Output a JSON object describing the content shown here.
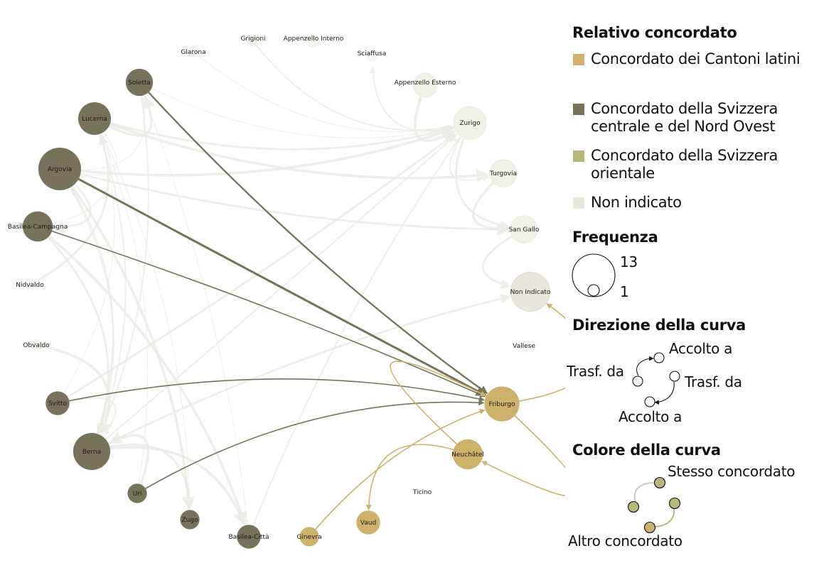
{
  "legend": {
    "concordat_title": "Relativo concordato",
    "concordats": [
      {
        "label": "Concordato dei Cantoni latini",
        "color": "#cdb26b"
      },
      {
        "label": "Concordato della Svizzera centrale e del Nord Ovest",
        "color": "#77735a"
      },
      {
        "label": "Concordato della Svizzera orientale",
        "color": "#b5b878"
      },
      {
        "label": "Non indicato",
        "color": "#e9e6de"
      }
    ],
    "frequency_title": "Frequenza",
    "frequency_max": "13",
    "frequency_min": "1",
    "direction_title": "Direzione della curva",
    "direction_labels": {
      "received_a": "Accolto a",
      "transferred_a": "Trasf. da",
      "transferred_b": "Trasf. da",
      "received_b": "Accolto a"
    },
    "color_title": "Colore della curva",
    "color_labels": {
      "same": "Stesso concordato",
      "other": "Altro concordato"
    }
  },
  "nodes": [
    {
      "id": "grigioni",
      "label": "Grigioni",
      "freq": 1,
      "concordat": "orientale"
    },
    {
      "id": "appenzello-interno",
      "label": "Appenzello Interno",
      "freq": 1,
      "concordat": "orientale"
    },
    {
      "id": "sciaffusa",
      "label": "Sciaffusa",
      "freq": 1,
      "concordat": "orientale"
    },
    {
      "id": "appenzello-esterno",
      "label": "Appenzello Esterno",
      "freq": 2,
      "concordat": "orientale"
    },
    {
      "id": "zurigo",
      "label": "Zurigo",
      "freq": 5,
      "concordat": "orientale"
    },
    {
      "id": "turgovia",
      "label": "Turgovia",
      "freq": 3,
      "concordat": "orientale"
    },
    {
      "id": "san-gallo",
      "label": "San Gallo",
      "freq": 3,
      "concordat": "orientale"
    },
    {
      "id": "non-indicato",
      "label": "Non Indicato",
      "freq": 8,
      "concordat": "none"
    },
    {
      "id": "vallese",
      "label": "Vallese",
      "freq": 1,
      "concordat": "latini"
    },
    {
      "id": "friburgo",
      "label": "Friburgo",
      "freq": 6,
      "concordat": "latini"
    },
    {
      "id": "neuchatel",
      "label": "Neuchâtel",
      "freq": 4,
      "concordat": "latini"
    },
    {
      "id": "ticino",
      "label": "Ticino",
      "freq": 1,
      "concordat": "latini"
    },
    {
      "id": "vaud",
      "label": "Vaud",
      "freq": 2,
      "concordat": "latini"
    },
    {
      "id": "ginevra",
      "label": "Ginevra",
      "freq": 1,
      "concordat": "latini"
    },
    {
      "id": "basilea-citta",
      "label": "Basilea-Città",
      "freq": 2,
      "concordat": "centrale"
    },
    {
      "id": "zugo",
      "label": "Zugo",
      "freq": 1,
      "concordat": "centrale"
    },
    {
      "id": "uri",
      "label": "Uri",
      "freq": 1,
      "concordat": "centrale"
    },
    {
      "id": "berna",
      "label": "Berna",
      "freq": 7,
      "concordat": "centrale"
    },
    {
      "id": "svitto",
      "label": "Svitto",
      "freq": 2,
      "concordat": "centrale"
    },
    {
      "id": "obvaldo",
      "label": "Obvaldo",
      "freq": 1,
      "concordat": "centrale"
    },
    {
      "id": "nidvaldo",
      "label": "Nidvaldo",
      "freq": 1,
      "concordat": "centrale"
    },
    {
      "id": "basilea-campagna",
      "label": "Basilea-Campagna",
      "freq": 4,
      "concordat": "centrale"
    },
    {
      "id": "argovia",
      "label": "Argovia",
      "freq": 10,
      "concordat": "centrale"
    },
    {
      "id": "lucerna",
      "label": "Lucerna",
      "freq": 5,
      "concordat": "centrale"
    },
    {
      "id": "soletta",
      "label": "Soletta",
      "freq": 3,
      "concordat": "centrale"
    },
    {
      "id": "glarona",
      "label": "Glarona",
      "freq": 1,
      "concordat": "orientale"
    }
  ],
  "highlighted_edges": [
    {
      "from": "soletta",
      "to": "friburgo",
      "weight": 2
    },
    {
      "from": "argovia",
      "to": "friburgo",
      "weight": 3
    },
    {
      "from": "basilea-campagna",
      "to": "friburgo",
      "weight": 1
    },
    {
      "from": "svitto",
      "to": "friburgo",
      "weight": 1
    },
    {
      "from": "uri",
      "to": "friburgo",
      "weight": 1
    },
    {
      "from": "ginevra",
      "to": "friburgo",
      "weight": 1
    },
    {
      "from": "friburgo",
      "to": "non-indicato",
      "weight": 1
    },
    {
      "from": "neuchatel",
      "to": "friburgo",
      "weight": 1
    },
    {
      "from": "friburgo",
      "to": "neuchatel",
      "weight": 1
    },
    {
      "from": "neuchatel",
      "to": "vaud",
      "weight": 1
    }
  ],
  "background_edges": [
    [
      "argovia",
      "lucerna"
    ],
    [
      "argovia",
      "berna"
    ],
    [
      "argovia",
      "basilea-campagna"
    ],
    [
      "argovia",
      "zurigo"
    ],
    [
      "argovia",
      "soletta"
    ],
    [
      "lucerna",
      "berna"
    ],
    [
      "lucerna",
      "zurigo"
    ],
    [
      "lucerna",
      "soletta"
    ],
    [
      "soletta",
      "zurigo"
    ],
    [
      "soletta",
      "berna"
    ],
    [
      "basilea-campagna",
      "berna"
    ],
    [
      "basilea-campagna",
      "basilea-citta"
    ],
    [
      "basilea-campagna",
      "lucerna"
    ],
    [
      "berna",
      "zurigo"
    ],
    [
      "berna",
      "zugo"
    ],
    [
      "berna",
      "basilea-citta"
    ],
    [
      "svitto",
      "lucerna"
    ],
    [
      "svitto",
      "berna"
    ],
    [
      "svitto",
      "zurigo"
    ],
    [
      "uri",
      "berna"
    ],
    [
      "uri",
      "lucerna"
    ],
    [
      "zurigo",
      "turgovia"
    ],
    [
      "zurigo",
      "san-gallo"
    ],
    [
      "turgovia",
      "san-gallo"
    ],
    [
      "zurigo",
      "appenzello-esterno"
    ],
    [
      "zurigo",
      "sciaffusa"
    ],
    [
      "san-gallo",
      "non-indicato"
    ],
    [
      "appenzello-esterno",
      "zurigo"
    ],
    [
      "glarona",
      "zurigo"
    ],
    [
      "grigioni",
      "zurigo"
    ],
    [
      "argovia",
      "san-gallo"
    ],
    [
      "lucerna",
      "turgovia"
    ],
    [
      "soletta",
      "basilea-citta"
    ],
    [
      "berna",
      "argovia"
    ],
    [
      "nidvaldo",
      "lucerna"
    ],
    [
      "obvaldo",
      "berna"
    ],
    [
      "zugo",
      "lucerna"
    ],
    [
      "basilea-citta",
      "zurigo"
    ],
    [
      "berna",
      "non-indicato"
    ],
    [
      "argovia",
      "zugo"
    ]
  ]
}
